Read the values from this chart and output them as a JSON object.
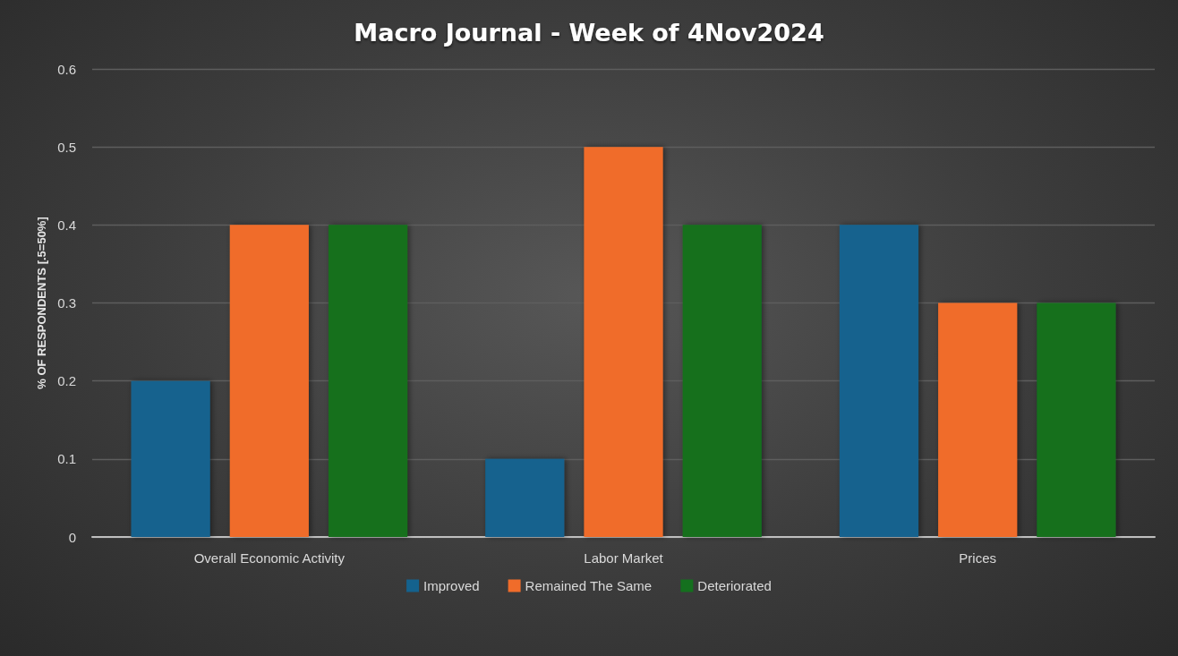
{
  "chart_data": {
    "type": "bar",
    "title": "Macro Journal - Week of 4Nov2024",
    "ylabel": "% OF RESPONDENTS [.5=50%]",
    "categories": [
      "Overall Economic Activity",
      "Labor Market",
      "Prices"
    ],
    "series": [
      {
        "name": "Improved",
        "color": "#14628e",
        "values": [
          0.2,
          0.1,
          0.4
        ]
      },
      {
        "name": "Remained The Same",
        "color": "#f06c2a",
        "values": [
          0.4,
          0.5,
          0.3
        ]
      },
      {
        "name": "Deteriorated",
        "color": "#14701e",
        "values": [
          0.4,
          0.4,
          0.3
        ]
      }
    ],
    "ylim": [
      0,
      0.6
    ],
    "yticks": [
      0,
      0.1,
      0.2,
      0.3,
      0.4,
      0.5,
      0.6
    ],
    "grid": "y",
    "legend": "bottom"
  }
}
